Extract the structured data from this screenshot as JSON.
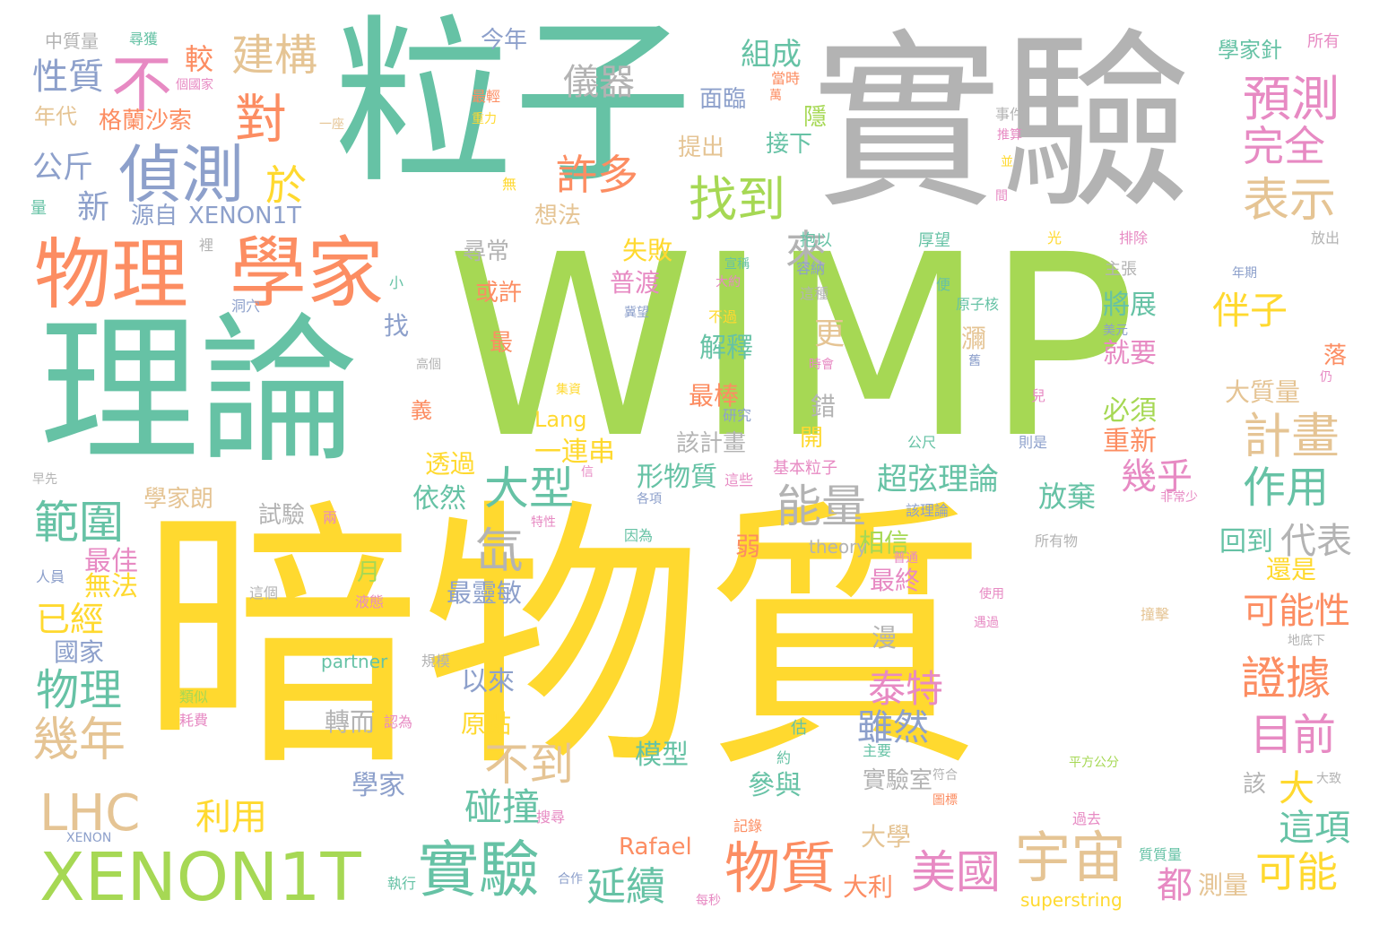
{
  "palette": {
    "green": "#66c2a5",
    "orange": "#fc8d62",
    "blue": "#8da0cb",
    "pink": "#e78ac3",
    "lime": "#a6d854",
    "yellow": "#ffd92f",
    "tan": "#e5c494",
    "gray": "#b3b3b3"
  },
  "words": [
    {
      "text": "暗物質",
      "color": "yellow"
    },
    {
      "text": "WIMP",
      "color": "lime"
    },
    {
      "text": "粒子",
      "color": "green"
    },
    {
      "text": "實驗",
      "color": "gray"
    },
    {
      "text": "理論",
      "color": "green"
    },
    {
      "text": "物理",
      "color": "orange"
    },
    {
      "text": "學家",
      "color": "orange"
    },
    {
      "text": "偵測",
      "color": "blue"
    },
    {
      "text": "不",
      "color": "pink"
    },
    {
      "text": "對",
      "color": "orange"
    },
    {
      "text": "建構",
      "color": "tan"
    },
    {
      "text": "於",
      "color": "yellow"
    },
    {
      "text": "預測",
      "color": "pink"
    },
    {
      "text": "完全",
      "color": "pink"
    },
    {
      "text": "表示",
      "color": "tan"
    },
    {
      "text": "找到",
      "color": "lime"
    },
    {
      "text": "許多",
      "color": "orange"
    },
    {
      "text": "儀器",
      "color": "gray"
    },
    {
      "text": "組成",
      "color": "green"
    },
    {
      "text": "今年",
      "color": "blue"
    },
    {
      "text": "性質",
      "color": "blue"
    },
    {
      "text": "較",
      "color": "orange"
    },
    {
      "text": "公斤",
      "color": "blue"
    },
    {
      "text": "新",
      "color": "blue"
    },
    {
      "text": "源自",
      "color": "blue"
    },
    {
      "text": "XENON1T",
      "color": "blue"
    },
    {
      "text": "格蘭沙索",
      "color": "orange"
    },
    {
      "text": "年代",
      "color": "tan"
    },
    {
      "text": "中質量",
      "color": "gray"
    },
    {
      "text": "尋獲",
      "color": "green"
    },
    {
      "text": "學家針",
      "color": "green"
    },
    {
      "text": "所有",
      "color": "pink"
    },
    {
      "text": "來",
      "color": "gray"
    },
    {
      "text": "面臨",
      "color": "blue"
    },
    {
      "text": "提出",
      "color": "tan"
    },
    {
      "text": "接下",
      "color": "green"
    },
    {
      "text": "隱",
      "color": "lime"
    },
    {
      "text": "大型",
      "color": "green"
    },
    {
      "text": "能量",
      "color": "gray"
    },
    {
      "text": "超弦理論",
      "color": "green"
    },
    {
      "text": "放棄",
      "color": "green"
    },
    {
      "text": "幾乎",
      "color": "pink"
    },
    {
      "text": "作用",
      "color": "green"
    },
    {
      "text": "計畫",
      "color": "tan"
    },
    {
      "text": "伴子",
      "color": "yellow"
    },
    {
      "text": "範圍",
      "color": "green"
    },
    {
      "text": "氙",
      "color": "gray"
    },
    {
      "text": "XENON1T",
      "color": "lime"
    },
    {
      "text": "實驗",
      "color": "green"
    },
    {
      "text": "物質",
      "color": "orange"
    },
    {
      "text": "宇宙",
      "color": "tan"
    },
    {
      "text": "美國",
      "color": "pink"
    },
    {
      "text": "可能",
      "color": "yellow"
    },
    {
      "text": "延續",
      "color": "green"
    },
    {
      "text": "LHC",
      "color": "tan"
    },
    {
      "text": "物理",
      "color": "green"
    },
    {
      "text": "幾年",
      "color": "tan"
    },
    {
      "text": "已經",
      "color": "yellow"
    },
    {
      "text": "不到",
      "color": "tan"
    },
    {
      "text": "碰撞",
      "color": "green"
    },
    {
      "text": "利用",
      "color": "yellow"
    },
    {
      "text": "證據",
      "color": "orange"
    },
    {
      "text": "目前",
      "color": "pink"
    },
    {
      "text": "可能性",
      "color": "orange"
    },
    {
      "text": "代表",
      "color": "gray"
    },
    {
      "text": "泰特",
      "color": "pink"
    },
    {
      "text": "雖然",
      "color": "blue"
    },
    {
      "text": "大",
      "color": "yellow"
    },
    {
      "text": "這項",
      "color": "green"
    },
    {
      "text": "都",
      "color": "pink"
    },
    {
      "text": "測量",
      "color": "tan"
    },
    {
      "text": "最佳",
      "color": "pink"
    },
    {
      "text": "無法",
      "color": "yellow"
    },
    {
      "text": "學家朗",
      "color": "tan"
    },
    {
      "text": "依然",
      "color": "green"
    },
    {
      "text": "透過",
      "color": "yellow"
    },
    {
      "text": "一連串",
      "color": "yellow"
    },
    {
      "text": "Lang",
      "color": "yellow"
    },
    {
      "text": "解釋",
      "color": "green"
    },
    {
      "text": "最棒",
      "color": "orange"
    },
    {
      "text": "該計畫",
      "color": "gray"
    },
    {
      "text": "形物質",
      "color": "green"
    },
    {
      "text": "更",
      "color": "tan"
    },
    {
      "text": "將展",
      "color": "green"
    },
    {
      "text": "必須",
      "color": "lime"
    },
    {
      "text": "重新",
      "color": "orange"
    },
    {
      "text": "就要",
      "color": "pink"
    },
    {
      "text": "大質量",
      "color": "tan"
    },
    {
      "text": "回到",
      "color": "green"
    },
    {
      "text": "還是",
      "color": "yellow"
    },
    {
      "text": "最終",
      "color": "pink"
    },
    {
      "text": "相信",
      "color": "lime"
    },
    {
      "text": "模型",
      "color": "green"
    },
    {
      "text": "參與",
      "color": "green"
    },
    {
      "text": "月",
      "color": "lime"
    },
    {
      "text": "最靈敏",
      "color": "blue"
    },
    {
      "text": "原點",
      "color": "yellow"
    },
    {
      "text": "以來",
      "color": "blue"
    },
    {
      "text": "轉而",
      "color": "gray"
    },
    {
      "text": "學家",
      "color": "blue"
    },
    {
      "text": "國家",
      "color": "blue"
    },
    {
      "text": "試驗",
      "color": "gray"
    },
    {
      "text": "實驗室",
      "color": "gray"
    },
    {
      "text": "大學",
      "color": "tan"
    },
    {
      "text": "大利",
      "color": "orange"
    },
    {
      "text": "Rafael",
      "color": "orange"
    },
    {
      "text": "superstring",
      "color": "yellow"
    },
    {
      "text": "partner",
      "color": "green"
    },
    {
      "text": "theory",
      "color": "gray"
    },
    {
      "text": "XENON",
      "color": "blue"
    },
    {
      "text": "尋常",
      "color": "gray"
    },
    {
      "text": "或許",
      "color": "orange"
    },
    {
      "text": "普渡",
      "color": "pink"
    },
    {
      "text": "失敗",
      "color": "yellow"
    },
    {
      "text": "錯",
      "color": "gray"
    },
    {
      "text": "開",
      "color": "yellow"
    },
    {
      "text": "漫",
      "color": "gray"
    },
    {
      "text": "瀰",
      "color": "tan"
    },
    {
      "text": "最",
      "color": "orange"
    },
    {
      "text": "弱",
      "color": "orange"
    },
    {
      "text": "找",
      "color": "blue"
    },
    {
      "text": "想法",
      "color": "tan"
    },
    {
      "text": "該",
      "color": "gray"
    },
    {
      "text": "落",
      "color": "orange"
    },
    {
      "text": "義",
      "color": "orange"
    },
    {
      "text": "量",
      "color": "green"
    },
    {
      "text": "小",
      "color": "green"
    },
    {
      "text": "洞穴",
      "color": "blue"
    },
    {
      "text": "裡",
      "color": "gray"
    },
    {
      "text": "早先",
      "color": "gray"
    },
    {
      "text": "人員",
      "color": "blue"
    },
    {
      "text": "兩",
      "color": "pink"
    },
    {
      "text": "一座",
      "color": "tan"
    },
    {
      "text": "最輕",
      "color": "orange"
    },
    {
      "text": "重力",
      "color": "yellow"
    },
    {
      "text": "無",
      "color": "yellow"
    },
    {
      "text": "個國家",
      "color": "pink"
    },
    {
      "text": "當時",
      "color": "orange"
    },
    {
      "text": "萬",
      "color": "orange"
    },
    {
      "text": "事件",
      "color": "gray"
    },
    {
      "text": "推算",
      "color": "pink"
    },
    {
      "text": "並",
      "color": "yellow"
    },
    {
      "text": "間",
      "color": "pink"
    },
    {
      "text": "光",
      "color": "yellow"
    },
    {
      "text": "排除",
      "color": "pink"
    },
    {
      "text": "放出",
      "color": "gray"
    },
    {
      "text": "主張",
      "color": "gray"
    },
    {
      "text": "年期",
      "color": "blue"
    },
    {
      "text": "便",
      "color": "green"
    },
    {
      "text": "原子核",
      "color": "green"
    },
    {
      "text": "美元",
      "color": "blue"
    },
    {
      "text": "舊",
      "color": "blue"
    },
    {
      "text": "厚望",
      "color": "green"
    },
    {
      "text": "抱以",
      "color": "green"
    },
    {
      "text": "宣稱",
      "color": "green"
    },
    {
      "text": "容納",
      "color": "blue"
    },
    {
      "text": "大約",
      "color": "pink"
    },
    {
      "text": "這種",
      "color": "gray"
    },
    {
      "text": "冀望",
      "color": "blue"
    },
    {
      "text": "不過",
      "color": "yellow"
    },
    {
      "text": "時會",
      "color": "pink"
    },
    {
      "text": "集資",
      "color": "yellow"
    },
    {
      "text": "研究",
      "color": "blue"
    },
    {
      "text": "兒",
      "color": "pink"
    },
    {
      "text": "公尺",
      "color": "green"
    },
    {
      "text": "則是",
      "color": "blue"
    },
    {
      "text": "仍",
      "color": "pink"
    },
    {
      "text": "高個",
      "color": "gray"
    },
    {
      "text": "信",
      "color": "pink"
    },
    {
      "text": "基本粒子",
      "color": "pink"
    },
    {
      "text": "這些",
      "color": "pink"
    },
    {
      "text": "非常少",
      "color": "pink"
    },
    {
      "text": "各項",
      "color": "blue"
    },
    {
      "text": "該理論",
      "color": "blue"
    },
    {
      "text": "特性",
      "color": "pink"
    },
    {
      "text": "因為",
      "color": "green"
    },
    {
      "text": "所有物",
      "color": "gray"
    },
    {
      "text": "普通",
      "color": "pink"
    },
    {
      "text": "這個",
      "color": "gray"
    },
    {
      "text": "液態",
      "color": "pink"
    },
    {
      "text": "使用",
      "color": "pink"
    },
    {
      "text": "遇過",
      "color": "pink"
    },
    {
      "text": "地底下",
      "color": "gray"
    },
    {
      "text": "撞擊",
      "color": "tan"
    },
    {
      "text": "規模",
      "color": "gray"
    },
    {
      "text": "類似",
      "color": "lime"
    },
    {
      "text": "耗費",
      "color": "pink"
    },
    {
      "text": "認為",
      "color": "pink"
    },
    {
      "text": "估",
      "color": "green"
    },
    {
      "text": "約",
      "color": "green"
    },
    {
      "text": "主要",
      "color": "green"
    },
    {
      "text": "符合",
      "color": "gray"
    },
    {
      "text": "圖標",
      "color": "orange"
    },
    {
      "text": "平方公分",
      "color": "lime"
    },
    {
      "text": "大致",
      "color": "gray"
    },
    {
      "text": "搜尋",
      "color": "pink"
    },
    {
      "text": "記錄",
      "color": "orange"
    },
    {
      "text": "過去",
      "color": "pink"
    },
    {
      "text": "質質量",
      "color": "green"
    },
    {
      "text": "執行",
      "color": "green"
    },
    {
      "text": "合作",
      "color": "blue"
    },
    {
      "text": "每秒",
      "color": "pink"
    }
  ]
}
